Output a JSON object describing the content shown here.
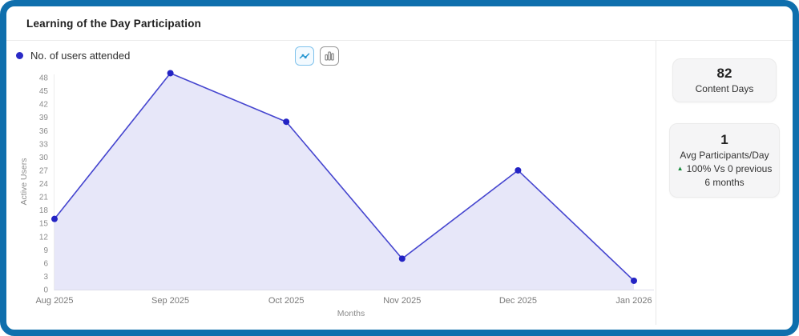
{
  "header": {
    "title": "Learning of the Day Participation"
  },
  "legend": {
    "label": "No. of users attended",
    "dot_color": "#2a2ac6"
  },
  "toolbar": {
    "icons": [
      {
        "name": "line-chart-icon",
        "active": true
      },
      {
        "name": "bar-chart-icon",
        "active": false
      }
    ]
  },
  "chart_data": {
    "type": "area",
    "x": [
      "Aug 2025",
      "Sep 2025",
      "Oct 2025",
      "Nov 2025",
      "Dec 2025",
      "Jan 2026"
    ],
    "series": [
      {
        "name": "No. of users attended",
        "values": [
          16,
          49,
          38,
          7,
          27,
          2
        ]
      }
    ],
    "title": "",
    "xlabel": "Months",
    "ylabel": "Active Users",
    "ylim": [
      0,
      48
    ],
    "ytick_step": 3,
    "grid": false,
    "legend_position": "top-left",
    "line_color": "#4545cf",
    "fill_color": "#e3e3f8",
    "point_color": "#2323c4"
  },
  "stats": {
    "content_days": {
      "value": "82",
      "label": "Content Days"
    },
    "avg_participants": {
      "value": "1",
      "label": "Avg Participants/Day",
      "trend_arrow": "▲",
      "trend_text": "100% Vs 0 previous",
      "trend_text2": "6 months"
    }
  }
}
